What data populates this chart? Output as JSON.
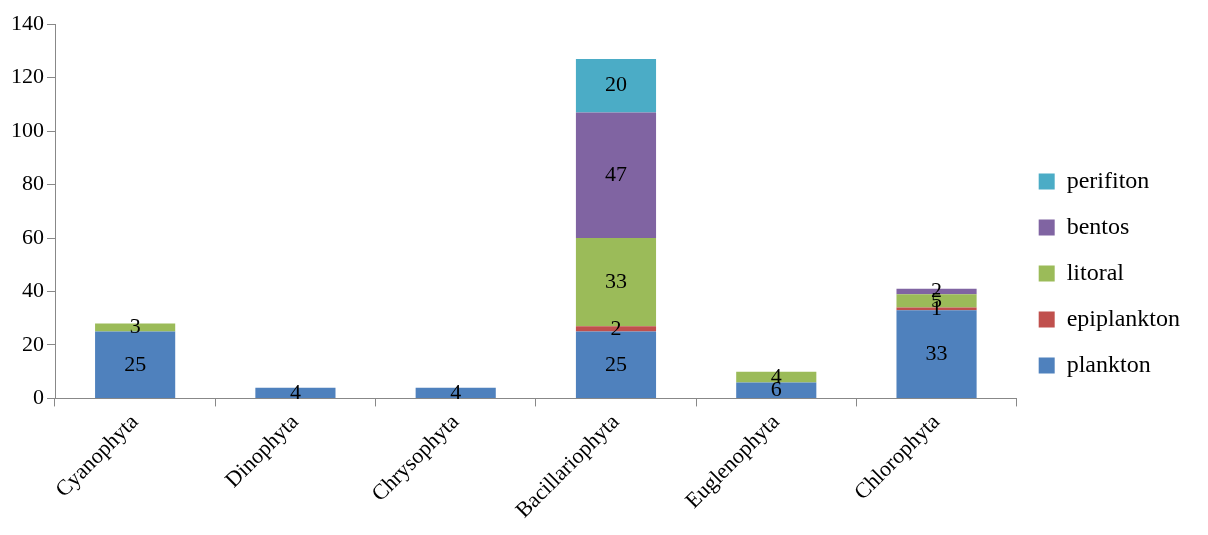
{
  "chart_data": {
    "type": "bar",
    "stacked": true,
    "categories": [
      "Cyanophyta",
      "Dinophyta",
      "Chrysophyta",
      "Bacillariophyta",
      "Euglenophyta",
      "Chlorophyta"
    ],
    "series": [
      {
        "name": "plankton",
        "color": "#4f81bd",
        "values": [
          25,
          4,
          4,
          25,
          6,
          33
        ]
      },
      {
        "name": "epiplankton",
        "color": "#c0504d",
        "values": [
          null,
          null,
          null,
          2,
          null,
          1
        ]
      },
      {
        "name": "litoral",
        "color": "#9bbb59",
        "values": [
          3,
          null,
          null,
          33,
          4,
          5
        ]
      },
      {
        "name": "bentos",
        "color": "#8064a2",
        "values": [
          null,
          null,
          null,
          47,
          null,
          2
        ]
      },
      {
        "name": "perifiton",
        "color": "#4bacc6",
        "values": [
          null,
          null,
          null,
          20,
          null,
          null
        ]
      }
    ],
    "ylim": [
      0,
      140
    ],
    "yticks": [
      0,
      20,
      40,
      60,
      80,
      100,
      120,
      140
    ],
    "grid": false,
    "legend": "right",
    "data_labels": true
  }
}
